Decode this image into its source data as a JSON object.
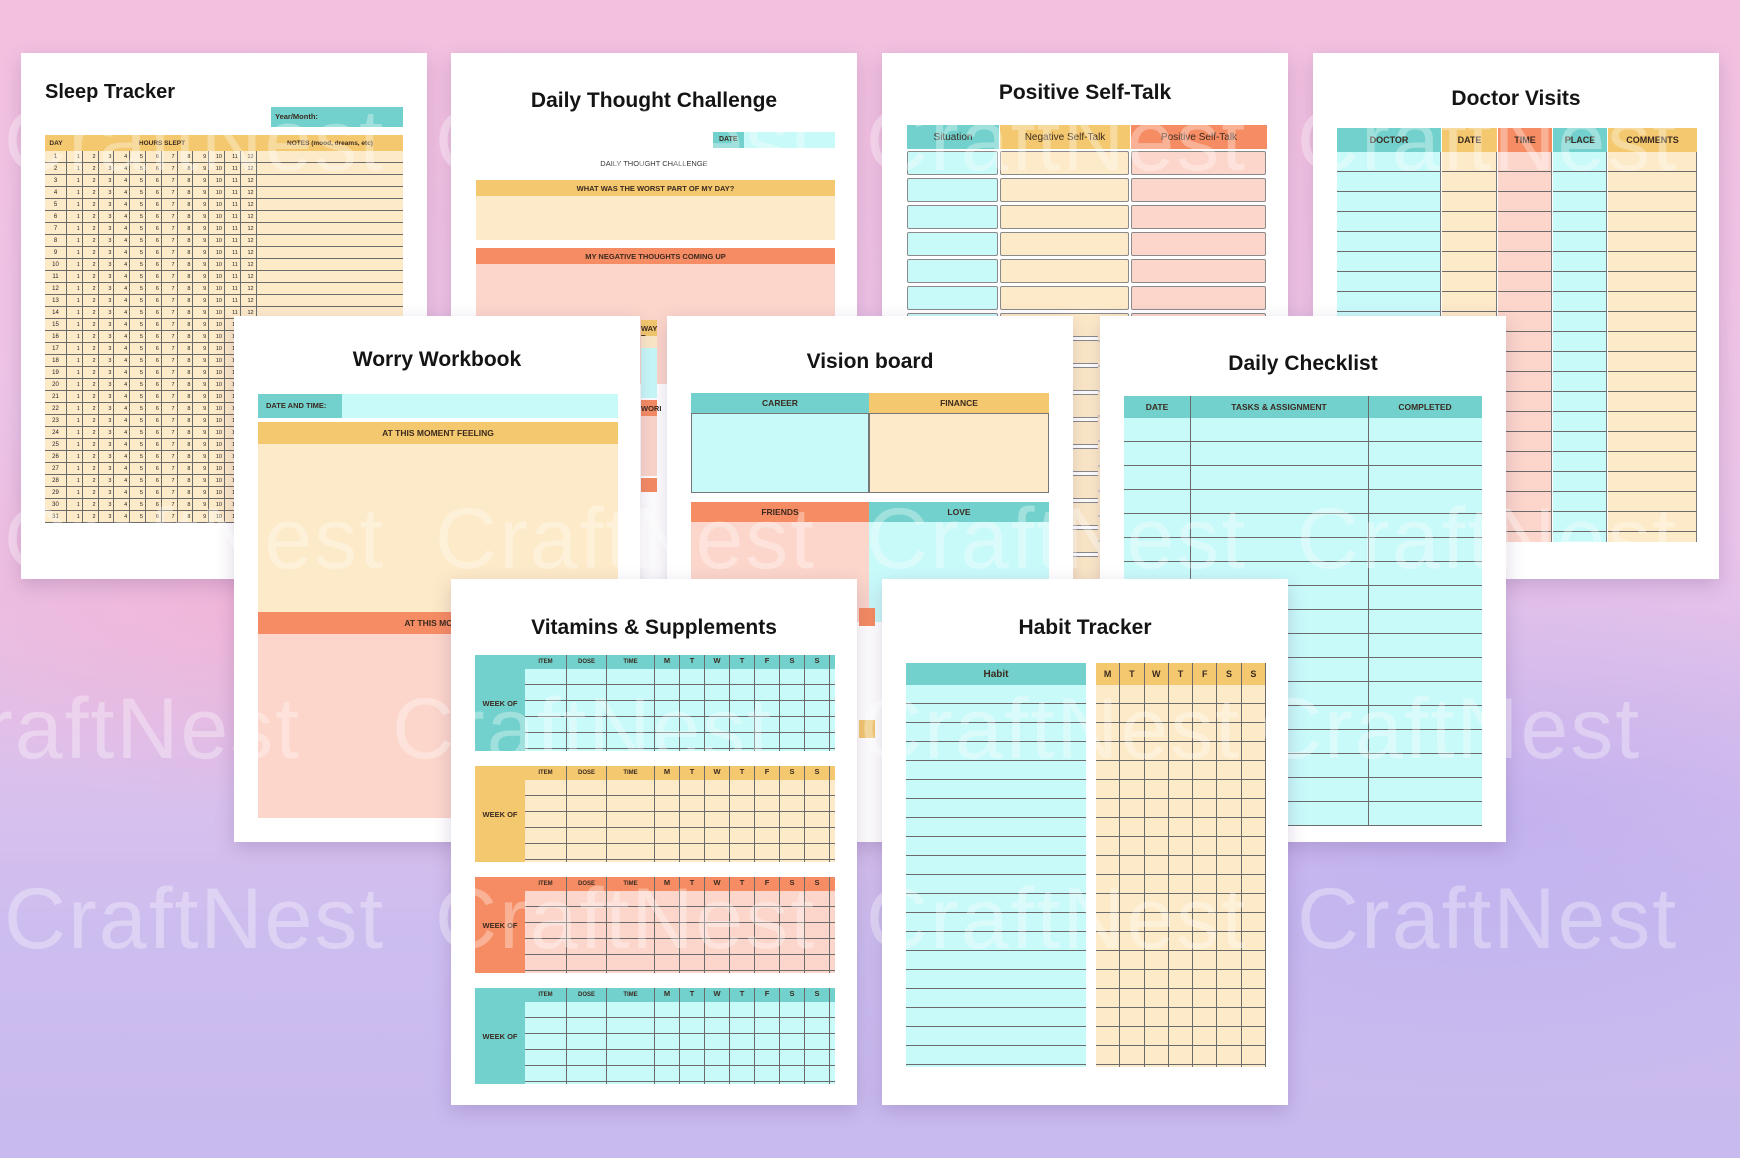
{
  "watermark": "CraftNest",
  "colors": {
    "teal": "#72d1cc",
    "yellow": "#f3c86e",
    "orange": "#f68c63",
    "light_teal": "#c9fafa",
    "light_yellow": "#fdeac8",
    "light_pink": "#fcd6ca"
  },
  "sleep": {
    "title": "Sleep Tracker",
    "year_month": "Year/Month:",
    "col_day": "DAY",
    "col_hours": "HOURS SLEPT",
    "col_notes": "NOTES (mood, dreams, etc)",
    "hours": [
      "1",
      "2",
      "3",
      "4",
      "5",
      "6",
      "7",
      "8",
      "9",
      "10",
      "11",
      "12"
    ]
  },
  "thought": {
    "title": "Daily Thought Challenge",
    "date": "DATE",
    "subtitle": "DAILY THOUGHT CHALLENGE",
    "q1": "WHAT WAS THE WORST PART OF MY DAY?",
    "q2": "MY NEGATIVE THOUGHTS COMING UP",
    "peek1": "WAY T",
    "peek2": "WORI"
  },
  "selftalk": {
    "title": "Positive Self-Talk",
    "cols": [
      "Situation",
      "Negative Self-Talk",
      "Positive Self-Talk"
    ]
  },
  "doctor": {
    "title": "Doctor Visits",
    "cols": [
      "DOCTOR",
      "DATE",
      "TIME",
      "PLACE",
      "COMMENTS"
    ]
  },
  "worry": {
    "title": "Worry Workbook",
    "date_time": "DATE AND TIME:",
    "feeling": "AT THIS MOMENT FEELING",
    "moment2": "AT THIS MOMEN"
  },
  "vision": {
    "title": "Vision board",
    "cells": [
      "CAREER",
      "FINANCE",
      "FRIENDS",
      "LOVE"
    ]
  },
  "checklist": {
    "title": "Daily Checklist",
    "cols": [
      "DATE",
      "TASKS & ASSIGNMENT",
      "COMPLETED"
    ]
  },
  "vitamins": {
    "title": "Vitamins & Supplements",
    "week_label": "WEEK OF",
    "cols": [
      "ITEM",
      "DOSE",
      "TIME"
    ],
    "days": [
      "M",
      "T",
      "W",
      "T",
      "F",
      "S",
      "S"
    ]
  },
  "habit": {
    "title": "Habit Tracker",
    "col_habit": "Habit",
    "days": [
      "M",
      "T",
      "W",
      "T",
      "F",
      "S",
      "S"
    ]
  }
}
